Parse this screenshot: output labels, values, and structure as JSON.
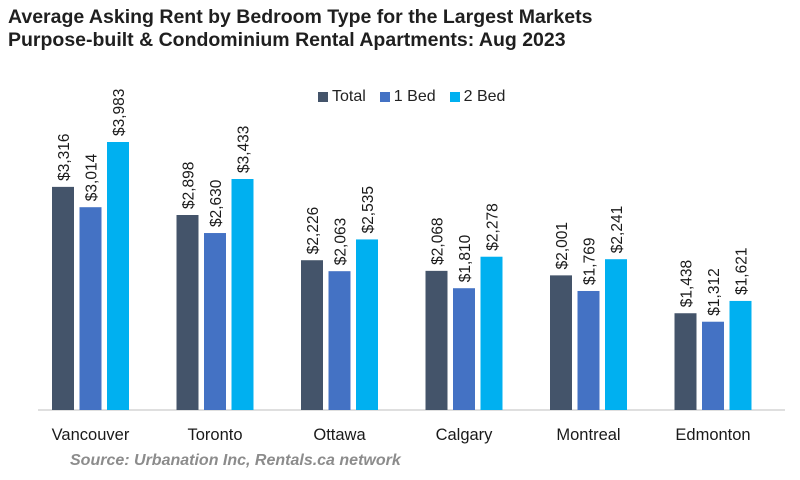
{
  "title_line1": "Average Asking Rent by Bedroom Type for the Largest Markets",
  "title_line2": "Purpose-built & Condominium Rental Apartments: Aug 2023",
  "source": "Source: Urbanation Inc, Rentals.ca network",
  "colors": {
    "Total": "#44546a",
    "1 Bed": "#4472c4",
    "2 Bed": "#00b0f0"
  },
  "chart_data": {
    "type": "bar",
    "categories": [
      "Vancouver",
      "Toronto",
      "Ottawa",
      "Calgary",
      "Montreal",
      "Edmonton"
    ],
    "series": [
      {
        "name": "Total",
        "values": [
          3316,
          2898,
          2226,
          2068,
          2001,
          1438
        ],
        "labels": [
          "$3,316",
          "$2,898",
          "$2,226",
          "$2,068",
          "$2,001",
          "$1,438"
        ]
      },
      {
        "name": "1 Bed",
        "values": [
          3014,
          2630,
          2063,
          1810,
          1769,
          1312
        ],
        "labels": [
          "$3,014",
          "$2,630",
          "$2,063",
          "$1,810",
          "$1,769",
          "$1,312"
        ]
      },
      {
        "name": "2 Bed",
        "values": [
          3983,
          3433,
          2535,
          2278,
          2241,
          1621
        ],
        "labels": [
          "$3,983",
          "$3,433",
          "$2,535",
          "$2,278",
          "$2,241",
          "$1,621"
        ]
      }
    ],
    "ylim": [
      0,
      4500
    ],
    "grid": false,
    "legend": "top-center"
  }
}
